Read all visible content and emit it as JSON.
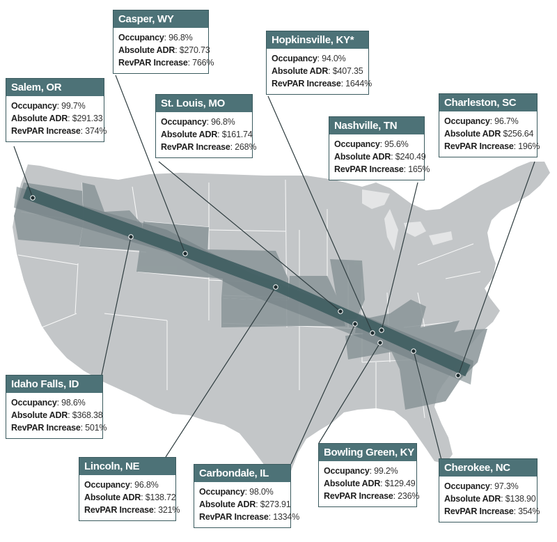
{
  "labels": {
    "occupancy": "Occupancy",
    "adr": "Absolute ADR",
    "revpar": "RevPAR Increase"
  },
  "colors": {
    "map_land": "#c3c6c8",
    "state_border": "#ffffff",
    "highlight_state": "#8a9598",
    "path_band": "#6e7b7f",
    "path_center": "#3f5d61",
    "card_header": "#4d7277",
    "leader_line": "#2e3c3f"
  },
  "cities": [
    {
      "id": "salem",
      "name": "Salem, OR",
      "occupancy": "99.7%",
      "adr": "$291.33",
      "revpar": "374%"
    },
    {
      "id": "casper",
      "name": "Casper, WY",
      "occupancy": "96.8%",
      "adr": "$270.73",
      "revpar": "766%"
    },
    {
      "id": "stlouis",
      "name": "St. Louis, MO",
      "occupancy": "96.8%",
      "adr": "$161.74",
      "revpar": "268%"
    },
    {
      "id": "hopkinsville",
      "name": "Hopkinsville, KY*",
      "occupancy": "94.0%",
      "adr": "$407.35",
      "revpar": "1644%"
    },
    {
      "id": "nashville",
      "name": "Nashville, TN",
      "occupancy": "95.6%",
      "adr": "$240.49",
      "revpar": "165%"
    },
    {
      "id": "charleston",
      "name": "Charleston, SC",
      "occupancy": "96.7%",
      "adr": "$256.64",
      "revpar": "196%"
    },
    {
      "id": "idahofalls",
      "name": "Idaho Falls, ID",
      "occupancy": "98.6%",
      "adr": "$368.38",
      "revpar": "501%"
    },
    {
      "id": "lincoln",
      "name": "Lincoln, NE",
      "occupancy": "96.8%",
      "adr": "$138.72",
      "revpar": "321%"
    },
    {
      "id": "carbondale",
      "name": "Carbondale, IL",
      "occupancy": "98.0%",
      "adr": "$273.91",
      "revpar": "1334%"
    },
    {
      "id": "bowlinggreen",
      "name": "Bowling Green, KY",
      "occupancy": "99.2%",
      "adr": "$129.49",
      "revpar": "236%"
    },
    {
      "id": "cherokee",
      "name": "Cherokee, NC",
      "occupancy": "97.3%",
      "adr": "$138.90",
      "revpar": "354%"
    }
  ]
}
